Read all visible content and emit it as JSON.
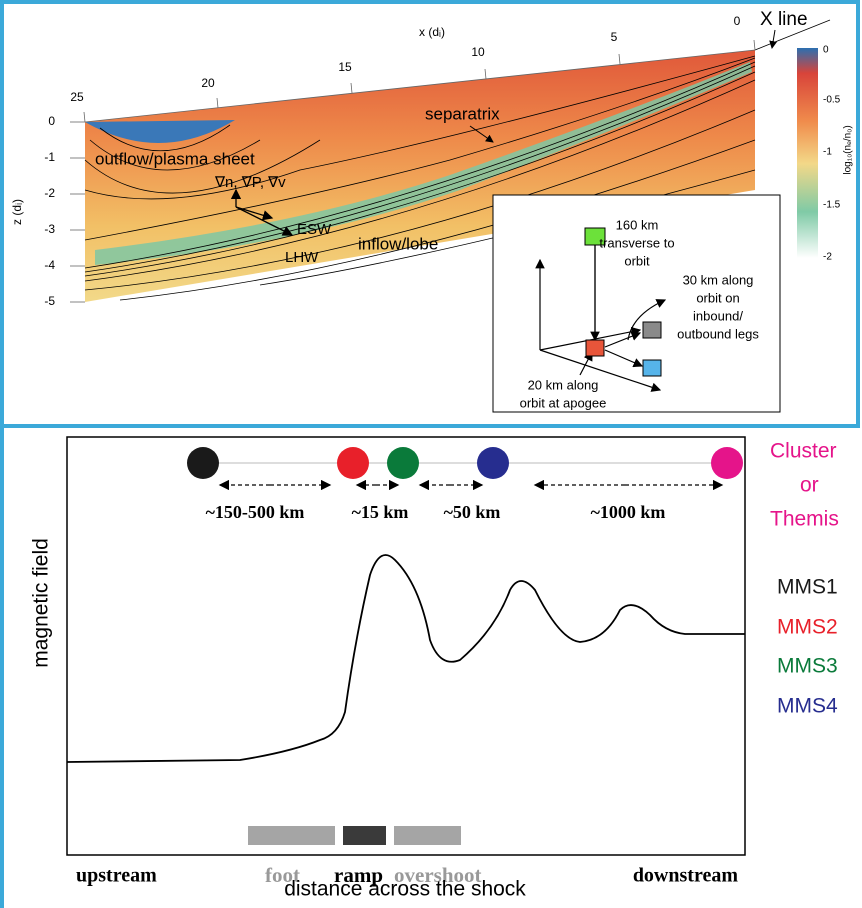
{
  "top_panel": {
    "x_axis": {
      "label": "x (dᵢ)",
      "ticks": [
        "25",
        "20",
        "15",
        "10",
        "5",
        "0"
      ]
    },
    "z_axis": {
      "label": "z (dᵢ)",
      "ticks": [
        "0",
        "-1",
        "-2",
        "-3",
        "-4",
        "-5"
      ]
    },
    "x_line": "X line",
    "colorbar": {
      "label": "log₁₀(nₑ/n₀)",
      "ticks": [
        "0",
        "-0.5",
        "-1",
        "-1.5",
        "-2"
      ]
    },
    "annotations": [
      "separatrix",
      "outflow/plasma sheet",
      "∇n, ∇P, ∇v",
      "ESW",
      "LHW",
      "inflow/lobe"
    ],
    "inset": {
      "transverse": [
        "160 km",
        "transverse to",
        "orbit"
      ],
      "legs": [
        "30 km along",
        "orbit on",
        "inbound/",
        "outbound legs"
      ],
      "apogee": [
        "20 km along",
        "orbit at apogee"
      ]
    }
  },
  "bottom_panel": {
    "separations": [
      "~150-500 km",
      "~15 km",
      "~50 km",
      "~1000 km"
    ],
    "y_label": "magnetic field",
    "regions": [
      "upstream",
      "foot",
      "ramp",
      "overshoot",
      "downstream"
    ],
    "x_label": "distance across the shock",
    "missions": {
      "cluster": [
        "Cluster",
        "or",
        "Themis"
      ],
      "mms": [
        "MMS1",
        "MMS2",
        "MMS3",
        "MMS4"
      ]
    }
  }
}
